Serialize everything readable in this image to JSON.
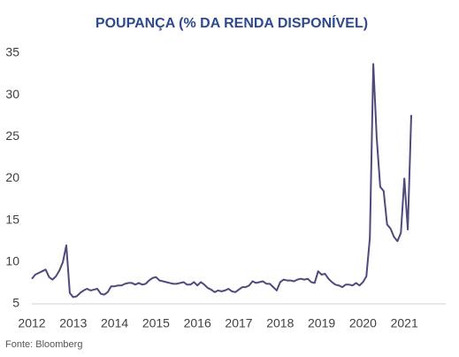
{
  "chart_data": {
    "type": "line",
    "title": "POUPANÇA (% DA RENDA DISPONÍVEL)",
    "source": "Fonte: Bloomberg",
    "x": [
      2012,
      2012.083,
      2012.167,
      2012.25,
      2012.333,
      2012.417,
      2012.5,
      2012.583,
      2012.667,
      2012.75,
      2012.833,
      2012.917,
      2013,
      2013.083,
      2013.167,
      2013.25,
      2013.333,
      2013.417,
      2013.5,
      2013.583,
      2013.667,
      2013.75,
      2013.833,
      2013.917,
      2014,
      2014.083,
      2014.167,
      2014.25,
      2014.333,
      2014.417,
      2014.5,
      2014.583,
      2014.667,
      2014.75,
      2014.833,
      2014.917,
      2015,
      2015.083,
      2015.167,
      2015.25,
      2015.333,
      2015.417,
      2015.5,
      2015.583,
      2015.667,
      2015.75,
      2015.833,
      2015.917,
      2016,
      2016.083,
      2016.167,
      2016.25,
      2016.333,
      2016.417,
      2016.5,
      2016.583,
      2016.667,
      2016.75,
      2016.833,
      2016.917,
      2017,
      2017.083,
      2017.167,
      2017.25,
      2017.333,
      2017.417,
      2017.5,
      2017.583,
      2017.667,
      2017.75,
      2017.833,
      2017.917,
      2018,
      2018.083,
      2018.167,
      2018.25,
      2018.333,
      2018.417,
      2018.5,
      2018.583,
      2018.667,
      2018.75,
      2018.833,
      2018.917,
      2019,
      2019.083,
      2019.167,
      2019.25,
      2019.333,
      2019.417,
      2019.5,
      2019.583,
      2019.667,
      2019.75,
      2019.833,
      2019.917,
      2020,
      2020.083,
      2020.167,
      2020.25,
      2020.333,
      2020.417,
      2020.5,
      2020.583,
      2020.667,
      2020.75,
      2020.833,
      2020.917,
      2021,
      2021.083,
      2021.167
    ],
    "series": [
      {
        "color": "#4e4a7c",
        "values": [
          8.0,
          8.5,
          8.7,
          8.9,
          9.1,
          8.2,
          7.9,
          8.3,
          9.0,
          10.0,
          12.0,
          6.3,
          5.8,
          5.9,
          6.3,
          6.6,
          6.8,
          6.6,
          6.7,
          6.8,
          6.2,
          6.1,
          6.4,
          7.1,
          7.1,
          7.2,
          7.2,
          7.4,
          7.5,
          7.5,
          7.3,
          7.5,
          7.3,
          7.4,
          7.8,
          8.1,
          8.2,
          7.8,
          7.7,
          7.6,
          7.5,
          7.4,
          7.4,
          7.5,
          7.6,
          7.3,
          7.3,
          7.6,
          7.2,
          7.6,
          7.3,
          6.9,
          6.7,
          6.4,
          6.6,
          6.5,
          6.6,
          6.8,
          6.5,
          6.4,
          6.7,
          7.0,
          7.0,
          7.2,
          7.7,
          7.5,
          7.6,
          7.7,
          7.4,
          7.4,
          7.0,
          6.6,
          7.6,
          7.9,
          7.8,
          7.8,
          7.7,
          7.9,
          8.0,
          7.9,
          8.0,
          7.6,
          7.5,
          8.9,
          8.5,
          8.6,
          8.0,
          7.6,
          7.3,
          7.2,
          7.0,
          7.3,
          7.3,
          7.2,
          7.5,
          7.2,
          7.6,
          8.3,
          12.9,
          33.7,
          24.8,
          19.0,
          18.5,
          14.5,
          14.0,
          13.0,
          12.5,
          13.5,
          20.0,
          13.9,
          27.6
        ]
      }
    ],
    "xlim": [
      2012,
      2022
    ],
    "xticks": [
      2012,
      2013,
      2014,
      2015,
      2016,
      2017,
      2018,
      2019,
      2020,
      2021
    ],
    "ylim": [
      5,
      35
    ],
    "yticks": [
      5,
      10,
      15,
      20,
      25,
      30,
      35
    ]
  }
}
